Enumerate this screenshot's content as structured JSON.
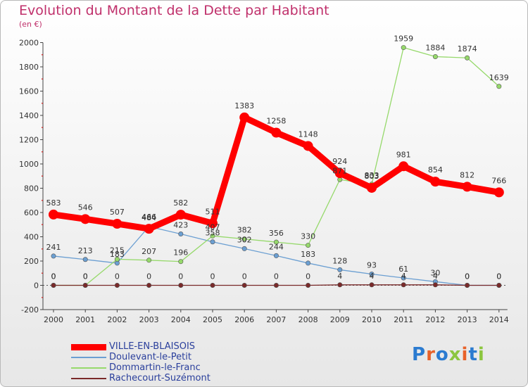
{
  "title": "Evolution du Montant de la Dette par Habitant",
  "subtitle": "(en €)",
  "logo": {
    "text": "Proxiti",
    "colors": [
      "#2b7bd0",
      "#e8622a",
      "#2b7bd0",
      "#8cc63f",
      "#e8622a",
      "#2b7bd0",
      "#8cc63f"
    ]
  },
  "chart_data": {
    "type": "line",
    "x": [
      "2000",
      "2001",
      "2002",
      "2003",
      "2004",
      "2005",
      "2006",
      "2007",
      "2008",
      "2009",
      "2010",
      "2011",
      "2012",
      "2013",
      "2014"
    ],
    "ylim": [
      -200,
      2000
    ],
    "yticks": [
      -200,
      0,
      200,
      400,
      600,
      800,
      1000,
      1200,
      1400,
      1600,
      1800,
      2000
    ],
    "grid": false,
    "legend": "bottom-left",
    "series": [
      {
        "name": "VILLE-EN-BLAISOIS",
        "color": "#ff0000",
        "values": [
          583,
          546,
          507,
          466,
          582,
          511,
          1383,
          1258,
          1148,
          924,
          803,
          981,
          854,
          812,
          766
        ]
      },
      {
        "name": "Doulevant-le-Petit",
        "color": "#6b9fd2",
        "values": [
          241,
          213,
          183,
          484,
          423,
          358,
          302,
          244,
          183,
          128,
          93,
          61,
          30,
          0,
          0
        ]
      },
      {
        "name": "Dommartin-le-Franc",
        "color": "#96d96b",
        "values": [
          0,
          0,
          215,
          207,
          196,
          407,
          382,
          356,
          330,
          871,
          833,
          1959,
          1884,
          1874,
          1639
        ]
      },
      {
        "name": "Rachecourt-Suzémont",
        "color": "#7a2a2a",
        "values": [
          0,
          0,
          0,
          0,
          0,
          0,
          0,
          0,
          0,
          4,
          4,
          4,
          4,
          0,
          0
        ]
      }
    ]
  }
}
